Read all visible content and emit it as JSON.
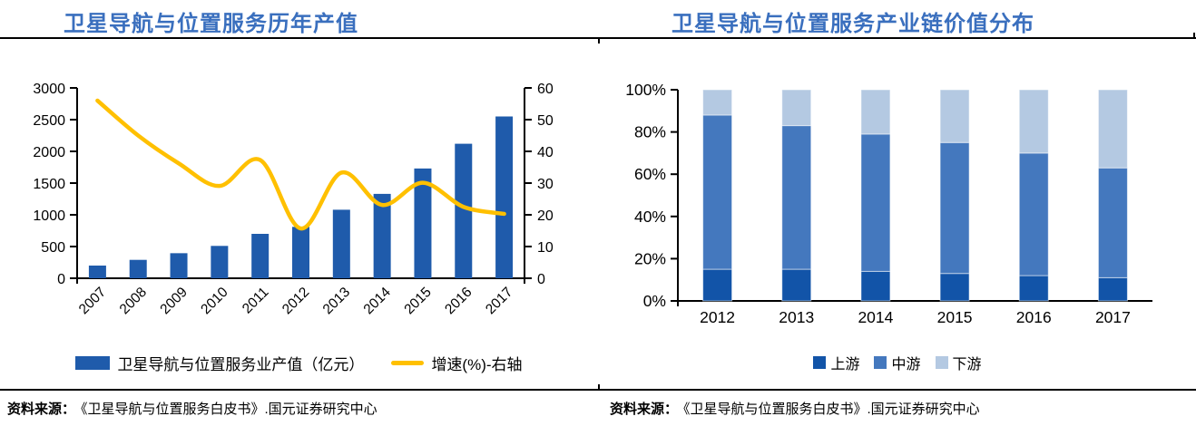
{
  "colors": {
    "title_blue": "#3A6FBE",
    "bar_blue": "#1F5BAB",
    "line_yellow": "#FFC000",
    "upstream_blue": "#1254A8",
    "midstream_blue": "#4478BE",
    "downstream_blue": "#B4C9E2",
    "axis_black": "#000000"
  },
  "sources": {
    "label": "资料来源：",
    "left": "《卫星导航与位置服务白皮书》.国元证券研究中心",
    "right": "《卫星导航与位置服务白皮书》.国元证券研究中心"
  },
  "chart_data": [
    {
      "type": "bar",
      "subtype": "bar-with-line",
      "title": "卫星导航与位置服务历年产值",
      "categories": [
        "2007",
        "2008",
        "2009",
        "2010",
        "2011",
        "2012",
        "2013",
        "2014",
        "2015",
        "2016",
        "2017"
      ],
      "series": [
        {
          "name": "卫星导航与位置服务业产值（亿元）",
          "type": "bar",
          "axis": "left",
          "color_key": "bar_blue",
          "values": [
            200,
            290,
            395,
            510,
            700,
            810,
            1080,
            1330,
            1730,
            2120,
            2550
          ]
        },
        {
          "name": "增速(%)-右轴",
          "type": "line",
          "axis": "right",
          "color_key": "line_yellow",
          "values": [
            56,
            45,
            36.2,
            29.1,
            37.3,
            15.7,
            33.3,
            23.1,
            30.1,
            22.5,
            20.3
          ]
        }
      ],
      "left_axis": {
        "min": 0,
        "max": 3000,
        "step": 500,
        "unit": ""
      },
      "right_axis": {
        "min": 0,
        "max": 60,
        "step": 10,
        "unit": ""
      },
      "legend_position": "bottom",
      "grid": false
    },
    {
      "type": "bar",
      "subtype": "stacked-100",
      "title": "卫星导航与位置服务产业链价值分布",
      "categories": [
        "2012",
        "2013",
        "2014",
        "2015",
        "2016",
        "2017"
      ],
      "series": [
        {
          "name": "上游",
          "color_key": "upstream_blue",
          "values": [
            15,
            15,
            14,
            13,
            12,
            11
          ]
        },
        {
          "name": "中游",
          "color_key": "midstream_blue",
          "values": [
            73,
            68,
            65,
            62,
            58,
            52
          ]
        },
        {
          "name": "下游",
          "color_key": "downstream_blue",
          "values": [
            12,
            17,
            21,
            25,
            30,
            37
          ]
        }
      ],
      "y_axis": {
        "min": 0,
        "max": 100,
        "step": 20,
        "unit": "%"
      },
      "legend_position": "bottom",
      "grid": false
    }
  ]
}
